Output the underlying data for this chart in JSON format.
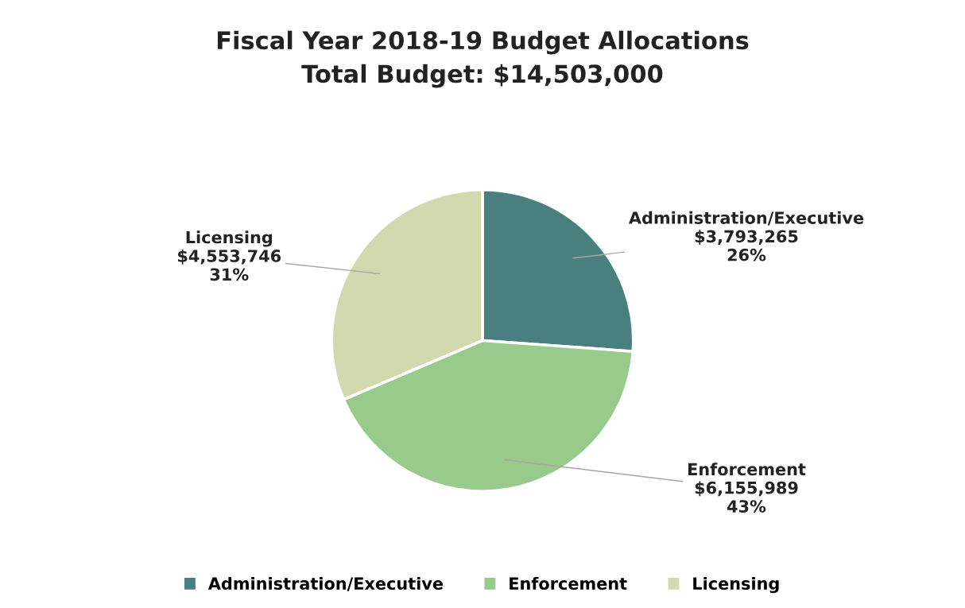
{
  "chart_data": {
    "type": "pie",
    "title": "Fiscal Year 2018-19 Budget Allocations",
    "subtitle": "Total Budget: $14,503,000",
    "categories": [
      "Administration/Executive",
      "Enforcement",
      "Licensing"
    ],
    "values": [
      3793265,
      6155989,
      4553746
    ],
    "colors": [
      "#4a7f7f",
      "#98ca8c",
      "#d2d9ae"
    ],
    "value_labels": [
      "$3,793,265\n26%",
      "$6,155,989\n43%",
      "$4,553,746\n31%"
    ],
    "legend": "bottom"
  }
}
